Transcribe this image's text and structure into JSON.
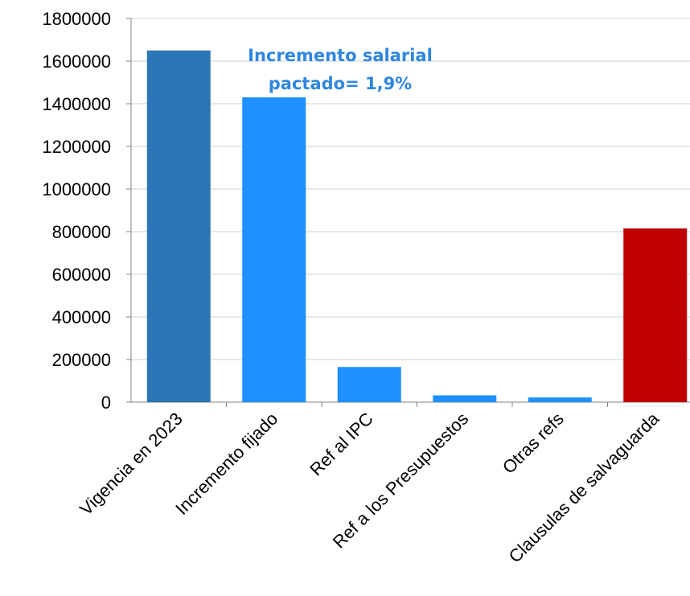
{
  "chart_data": {
    "type": "bar",
    "categories": [
      "Vigencia en 2023",
      "Incremento fijado",
      "Ref al IPC",
      "Ref a los Presupuestos",
      "Otras refs",
      "Clausulas de salvaguarda"
    ],
    "values": [
      1650000,
      1430000,
      165000,
      32000,
      22000,
      815000
    ],
    "bar_colors": [
      "#2e75b6",
      "#1e90ff",
      "#1e90ff",
      "#1e90ff",
      "#1e90ff",
      "#c00000"
    ],
    "ylim": [
      0,
      1800000
    ],
    "yticks": [
      "0",
      "200000",
      "400000",
      "600000",
      "800000",
      "1000000",
      "1200000",
      "1400000",
      "1600000",
      "1800000"
    ],
    "ytick_values": [
      0,
      200000,
      400000,
      600000,
      800000,
      1000000,
      1200000,
      1400000,
      1600000,
      1800000
    ],
    "grid": true,
    "annotation": {
      "line1": "Incremento salarial",
      "line2": "pactado= 1,9%",
      "color": "#2e86de"
    }
  }
}
